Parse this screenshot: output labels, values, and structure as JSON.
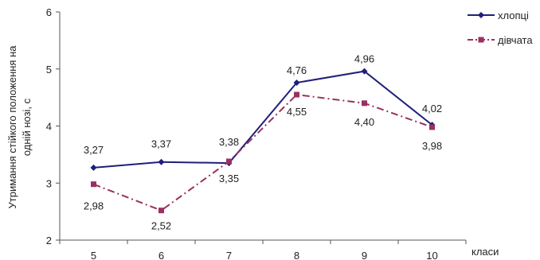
{
  "chart_data": {
    "type": "line",
    "x": [
      "5",
      "6",
      "7",
      "8",
      "9",
      "10"
    ],
    "xlabel": "класи",
    "ylabel": "Утримання стійкого положення на одній нозі, с",
    "ylabel_lines": [
      "Утримання стійкого положення на",
      "одній нозі, с"
    ],
    "ylim": [
      2,
      6
    ],
    "yticks": [
      "2",
      "3",
      "4",
      "5",
      "6"
    ],
    "grid": false,
    "legend": "top-right",
    "series": [
      {
        "name": "хлопці",
        "values": [
          3.27,
          3.37,
          3.35,
          4.76,
          4.96,
          4.02
        ],
        "labels": [
          "3,27",
          "3,37",
          "3,35",
          "4,76",
          "4,96",
          "4,02"
        ],
        "color": "#1f1f7a",
        "marker": "diamond",
        "line_style": "solid"
      },
      {
        "name": "дівчата",
        "values": [
          2.98,
          2.52,
          3.38,
          4.55,
          4.4,
          3.98
        ],
        "labels": [
          "2,98",
          "2,52",
          "3,38",
          "4,55",
          "4,40",
          "3,98"
        ],
        "color": "#9b3060",
        "marker": "square",
        "line_style": "dash-dot"
      }
    ]
  }
}
